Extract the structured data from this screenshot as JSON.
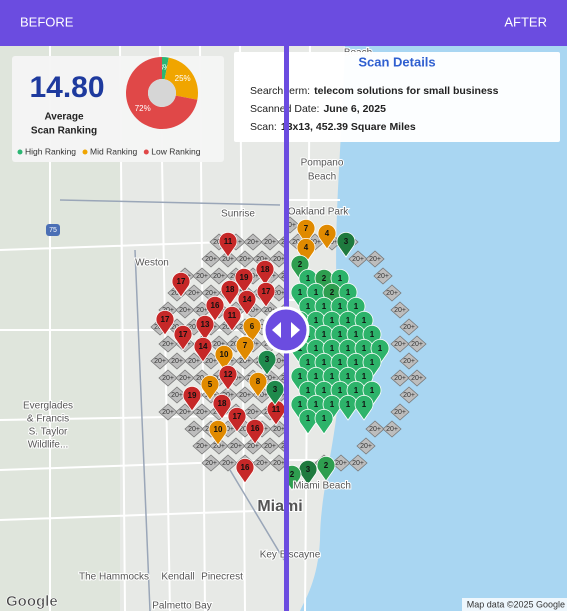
{
  "header": {
    "before": "BEFORE",
    "after": "AFTER"
  },
  "stats": {
    "average": "14.80",
    "label_line1": "Average",
    "label_line2": "Scan Ranking"
  },
  "donut": {
    "values": [
      3,
      25,
      72
    ],
    "value_labels": [
      "3%",
      "25%",
      "72%"
    ],
    "names": [
      "High Ranking",
      "Mid Ranking",
      "Low Ranking"
    ],
    "colors": [
      "#2bb673",
      "#f0a500",
      "#e04848"
    ]
  },
  "scan_details": {
    "title": "Scan Details",
    "rows": [
      [
        "Search term:",
        "telecom solutions for small business"
      ],
      [
        "Scanned Date:",
        "June 6, 2025"
      ],
      [
        "Scan:",
        "13x13, 452.39 Square Miles"
      ]
    ]
  },
  "map_labels": [
    "Beach",
    "Pompano",
    "Beach",
    "Oakland Park",
    "Sunrise",
    "Weston",
    "Everglades",
    "& Francis",
    "S. Taylor",
    "Wildlife...",
    "Miami",
    "Miami Beach",
    "Key Biscayne",
    "The Hammocks",
    "Kendall",
    "Pinecrest",
    "Palmetto Bay",
    "75"
  ],
  "unranked_label": "20+",
  "before_pins": {
    "labels": [
      "11",
      "17",
      "19",
      "18",
      "16",
      "18",
      "14",
      "17",
      "17",
      "13",
      "11",
      "17",
      "14",
      "6",
      "7",
      "10",
      "3",
      "12",
      "8",
      "5",
      "19",
      "18",
      "17",
      "16",
      "11",
      "10",
      "3",
      "16"
    ],
    "colors": [
      "#c62828",
      "#c62828",
      "#c62828",
      "#c62828",
      "#c62828",
      "#c62828",
      "#c62828",
      "#c62828",
      "#c62828",
      "#c62828",
      "#c62828",
      "#c62828",
      "#c62828",
      "#e08a00",
      "#e08a00",
      "#e08a00",
      "#1f8a4c",
      "#c62828",
      "#e08a00",
      "#e08a00",
      "#c62828",
      "#c62828",
      "#c62828",
      "#c62828",
      "#c62828",
      "#e08a00",
      "#1f8a4c",
      "#c62828"
    ]
  },
  "after_pins": {
    "labels": [
      "7",
      "4",
      "3",
      "4",
      "2",
      "1",
      "2",
      "1",
      "1",
      "1",
      "2",
      "1",
      "1",
      "1",
      "1",
      "1",
      "1",
      "1",
      "1",
      "1",
      "1",
      "1",
      "1",
      "1",
      "1",
      "1",
      "1",
      "1",
      "1",
      "1",
      "1",
      "1",
      "1",
      "1",
      "1",
      "1",
      "1",
      "1",
      "1",
      "1",
      "1",
      "1",
      "1",
      "1",
      "1",
      "1",
      "1",
      "1",
      "1",
      "1",
      "1",
      "1",
      "1",
      "1",
      "3",
      "2",
      "2"
    ],
    "colors": [
      "#e08a00",
      "#e08a00",
      "#1f7a3e",
      "#e08a00",
      "#2e9e4f",
      "#2db36a",
      "#2e9e4f",
      "#2db36a",
      "#2db36a",
      "#2db36a",
      "#2e9e4f",
      "#2db36a",
      "#2db36a",
      "#2db36a",
      "#2db36a",
      "#2db36a",
      "#2db36a",
      "#2db36a",
      "#2db36a",
      "#2db36a",
      "#2db36a",
      "#2db36a",
      "#2db36a",
      "#2db36a",
      "#2db36a",
      "#2db36a",
      "#2db36a",
      "#2db36a",
      "#2db36a",
      "#2db36a",
      "#2db36a",
      "#2db36a",
      "#2db36a",
      "#2db36a",
      "#2db36a",
      "#2db36a",
      "#2db36a",
      "#2db36a",
      "#2db36a",
      "#2db36a",
      "#2db36a",
      "#2db36a",
      "#2db36a",
      "#2db36a",
      "#2db36a",
      "#2db36a",
      "#2db36a",
      "#2db36a",
      "#2db36a",
      "#2db36a",
      "#2db36a",
      "#2db36a",
      "#2db36a",
      "#2db36a",
      "#1f7a3e",
      "#2e9e4f",
      "#2e9e4f"
    ]
  },
  "footer": {
    "google": "Google",
    "attribution": "Map data ©2025 Google"
  }
}
